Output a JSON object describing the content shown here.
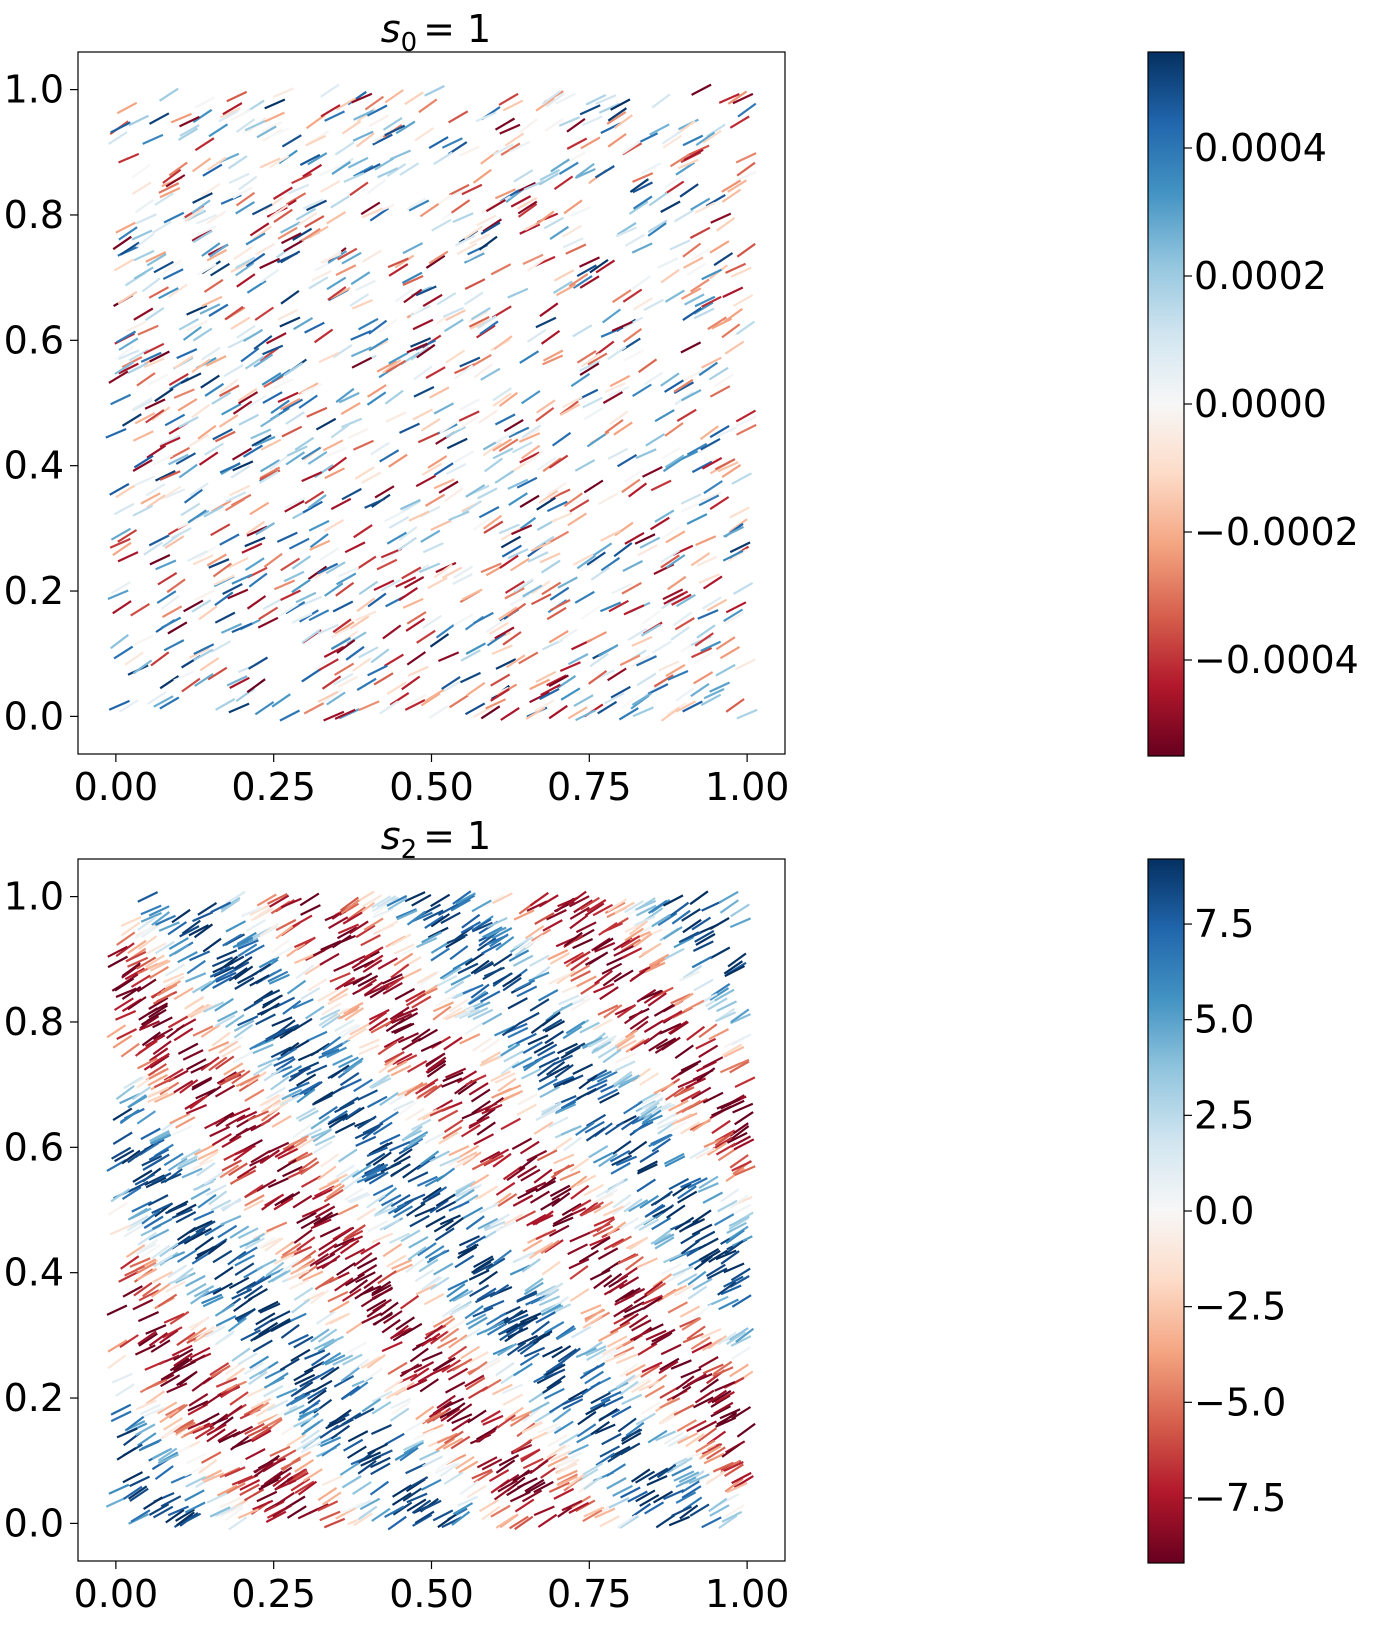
{
  "chart_data": [
    {
      "type": "line-segment-field",
      "title": "s",
      "title_subscript": "0",
      "title_rhs": "= 1",
      "xlabel": "",
      "ylabel": "",
      "xlim": [
        -0.06,
        1.06
      ],
      "ylim": [
        -0.06,
        1.06
      ],
      "x_ticks": [
        "0.00",
        "0.25",
        "0.50",
        "0.75",
        "1.00"
      ],
      "x_tick_values": [
        0,
        0.25,
        0.5,
        0.75,
        1.0
      ],
      "y_ticks": [
        "0.0",
        "0.2",
        "0.4",
        "0.6",
        "0.8",
        "1.0"
      ],
      "y_tick_values": [
        0,
        0.2,
        0.4,
        0.6,
        0.8,
        1.0
      ],
      "domain": [
        0,
        1
      ],
      "segment_angle_deg": 30,
      "segment_length": 0.035,
      "pattern": "small-amplitude noise aligned along streaks at about 30 degrees",
      "wave": {
        "kx": 0,
        "ky": 0,
        "noise": 1.0
      },
      "colormap": "RdBu",
      "colorbar": {
        "min": -0.00055,
        "max": 0.00055,
        "ticks": [
          "−0.0004",
          "−0.0002",
          "0.0000",
          "0.0002",
          "0.0004"
        ],
        "tick_values": [
          -0.0004,
          -0.0002,
          0,
          0.0002,
          0.0004
        ]
      }
    },
    {
      "type": "line-segment-field",
      "title": "s",
      "title_subscript": "2",
      "title_rhs": "= 1",
      "xlabel": "",
      "ylabel": "",
      "xlim": [
        -0.06,
        1.06
      ],
      "ylim": [
        -0.06,
        1.06
      ],
      "x_ticks": [
        "0.00",
        "0.25",
        "0.50",
        "0.75",
        "1.00"
      ],
      "x_tick_values": [
        0,
        0.25,
        0.5,
        0.75,
        1.0
      ],
      "y_ticks": [
        "0.0",
        "0.2",
        "0.4",
        "0.6",
        "0.8",
        "1.0"
      ],
      "y_tick_values": [
        0,
        0.2,
        0.4,
        0.6,
        0.8,
        1.0
      ],
      "domain": [
        0,
        1
      ],
      "segment_angle_deg": 30,
      "segment_length": 0.035,
      "pattern": "diagonal bands of alternating sign running top-left to bottom-right",
      "wave": {
        "kx": 2.5,
        "ky": 2.0,
        "noise": 0.15
      },
      "colormap": "RdBu",
      "colorbar": {
        "min": -9.2,
        "max": 9.2,
        "ticks": [
          "−7.5",
          "−5.0",
          "−2.5",
          "0.0",
          "2.5",
          "5.0",
          "7.5"
        ],
        "tick_values": [
          -7.5,
          -5.0,
          -2.5,
          0,
          2.5,
          5.0,
          7.5
        ]
      }
    }
  ]
}
